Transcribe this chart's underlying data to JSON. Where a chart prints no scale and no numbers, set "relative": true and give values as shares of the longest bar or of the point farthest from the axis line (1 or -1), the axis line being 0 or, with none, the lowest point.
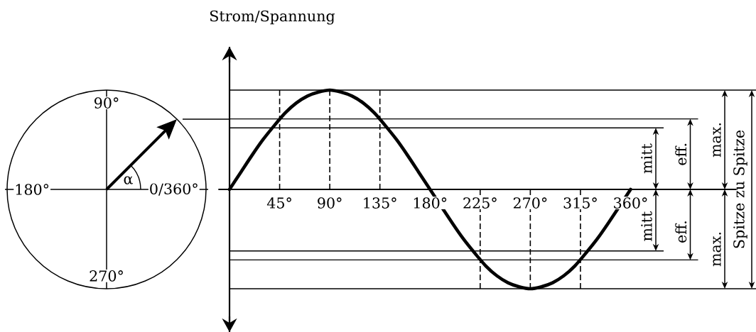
{
  "chart_data": {
    "type": "line",
    "ylabel": "Strom/Spannung",
    "relative": true,
    "x": [
      0,
      10,
      20,
      30,
      40,
      50,
      60,
      70,
      80,
      90,
      100,
      110,
      120,
      130,
      140,
      150,
      160,
      170,
      180,
      190,
      200,
      210,
      220,
      230,
      240,
      250,
      260,
      270,
      280,
      290,
      300,
      310,
      320,
      330,
      340,
      350,
      360
    ],
    "xlim": [
      -10,
      455
    ],
    "xticks": [
      {
        "value": 45,
        "label": "45°"
      },
      {
        "value": 90,
        "label": "90°"
      },
      {
        "value": 135,
        "label": "135°"
      },
      {
        "value": 180,
        "label": "180°"
      },
      {
        "value": 225,
        "label": "225°"
      },
      {
        "value": 270,
        "label": "270°"
      },
      {
        "value": 315,
        "label": "315°"
      },
      {
        "value": 360,
        "label": "360°"
      }
    ],
    "series": [
      {
        "color": "#000000",
        "values": [
          0,
          0.17,
          0.34,
          0.5,
          0.64,
          0.77,
          0.87,
          0.94,
          0.98,
          1,
          0.98,
          0.94,
          0.87,
          0.77,
          0.64,
          0.5,
          0.34,
          0.17,
          0,
          null,
          -0.34,
          -0.5,
          -0.64,
          -0.77,
          -0.87,
          -0.94,
          -0.98,
          -1,
          -0.98,
          -0.94,
          -0.87,
          -0.77,
          -0.64,
          -0.5,
          -0.34,
          null,
          0
        ]
      }
    ],
    "ref_lines": [
      {
        "axis": "y",
        "value": 1,
        "label": "max."
      },
      {
        "axis": "y",
        "value": 0.71,
        "label": "eff."
      },
      {
        "axis": "y",
        "value": 0.62,
        "label": "mitt"
      },
      {
        "axis": "y",
        "value": -0.62,
        "label": "mitt"
      },
      {
        "axis": "y",
        "value": -0.71,
        "label": "eff."
      },
      {
        "axis": "y",
        "value": -1,
        "label": "max."
      },
      {
        "axis": "x",
        "value": 45,
        "line_style": "dashed"
      },
      {
        "axis": "x",
        "value": 90,
        "line_style": "dashed"
      },
      {
        "axis": "x",
        "value": 135,
        "line_style": "dashed"
      },
      {
        "axis": "x",
        "value": 225,
        "line_style": "dashed"
      },
      {
        "axis": "x",
        "value": 270,
        "line_style": "dashed"
      },
      {
        "axis": "x",
        "value": 315,
        "line_style": "dashed"
      }
    ],
    "annotations": [
      "Spitze zu Spitze",
      "90°",
      "180°",
      "0/360°",
      "270°",
      "α"
    ]
  }
}
